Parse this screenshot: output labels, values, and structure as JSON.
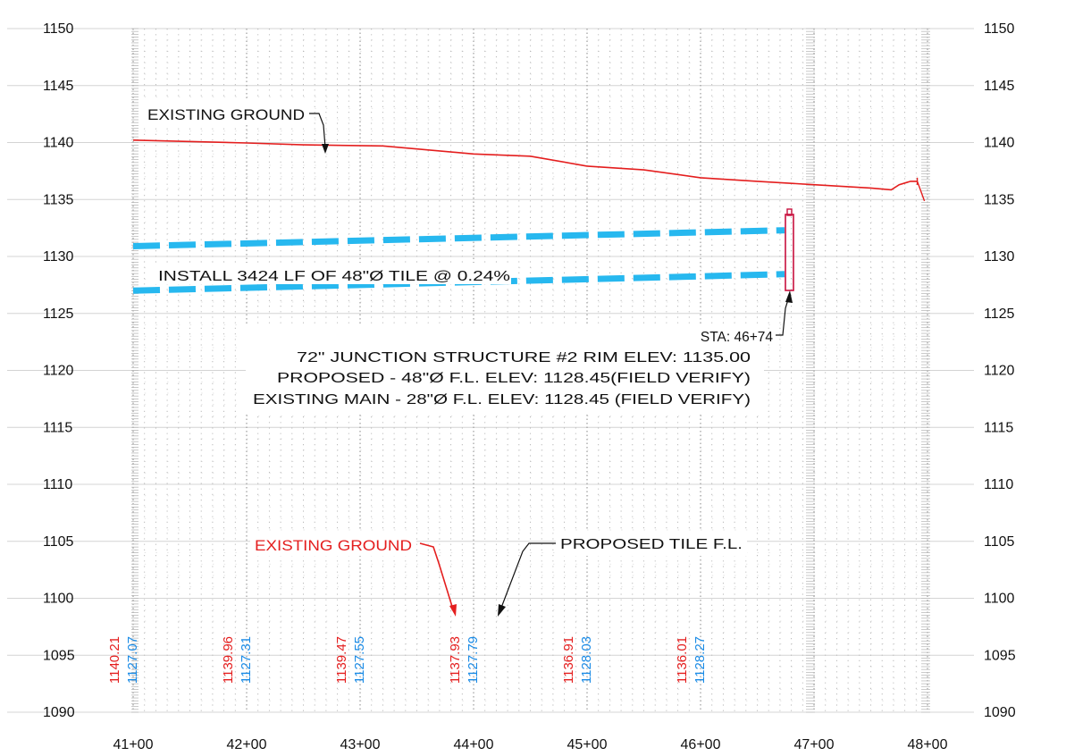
{
  "elevation_labels": [
    "1150",
    "1145",
    "1140",
    "1135",
    "1130",
    "1125",
    "1120",
    "1115",
    "1110",
    "1105",
    "1100",
    "1095",
    "1090"
  ],
  "station_labels": [
    "41+00",
    "42+00",
    "43+00",
    "44+00",
    "45+00",
    "46+00",
    "47+00",
    "48+00"
  ],
  "existing_ground_label": "EXISTING GROUND",
  "tile_note": "INSTALL 3424 LF OF 48\"Ø TILE @ 0.24%",
  "structure_note": {
    "station": "STA: 46+74",
    "line1": "72\" JUNCTION STRUCTURE #2 RIM ELEV: 1135.00",
    "line2": "PROPOSED - 48\"Ø F.L. ELEV: 1128.45(FIELD VERIFY)",
    "line3": "EXISTING MAIN - 28\"Ø F.L. ELEV: 1128.45 (FIELD VERIFY)"
  },
  "legend": {
    "existing_ground": "EXISTING GROUND",
    "proposed_tile": "PROPOSED TILE F.L."
  },
  "colors": {
    "ground": "#e41e1e",
    "tile": "#27b8ef",
    "structure": "#c8103e",
    "blue_text": "#1a8be6"
  },
  "vertical_values": [
    {
      "ground": "1140.21",
      "tile": "1127.07"
    },
    {
      "ground": "1139.96",
      "tile": "1127.31"
    },
    {
      "ground": "1139.47",
      "tile": "1127.55"
    },
    {
      "ground": "1137.93",
      "tile": "1127.79"
    },
    {
      "ground": "1136.91",
      "tile": "1128.03"
    },
    {
      "ground": "1136.01",
      "tile": "1128.27"
    }
  ],
  "chart_data": {
    "type": "line",
    "x_unit": "station",
    "y_unit": "elevation",
    "xlim": [
      4090,
      4830
    ],
    "ylim": [
      1090,
      1150
    ],
    "series": [
      {
        "key": "ground",
        "points": [
          [
            4100,
            1140.21
          ],
          [
            4200,
            1139.96
          ],
          [
            4250,
            1139.8
          ],
          [
            4320,
            1139.7
          ],
          [
            4400,
            1139.0
          ],
          [
            4450,
            1138.8
          ],
          [
            4500,
            1137.93
          ],
          [
            4550,
            1137.6
          ],
          [
            4600,
            1136.91
          ],
          [
            4650,
            1136.6
          ],
          [
            4700,
            1136.3
          ],
          [
            4750,
            1136.01
          ],
          [
            4768,
            1135.85
          ],
          [
            4775,
            1136.3
          ],
          [
            4785,
            1136.6
          ],
          [
            4791,
            1136.6
          ]
        ]
      },
      {
        "key": "tile_top",
        "points": [
          [
            4100,
            1130.9
          ],
          [
            4674,
            1132.3
          ]
        ]
      },
      {
        "key": "tile_bottom",
        "points": [
          [
            4100,
            1127.0
          ],
          [
            4674,
            1128.45
          ]
        ]
      }
    ],
    "structure": {
      "station": 4674,
      "rim": 1135.0,
      "flowline": 1128.45
    }
  }
}
